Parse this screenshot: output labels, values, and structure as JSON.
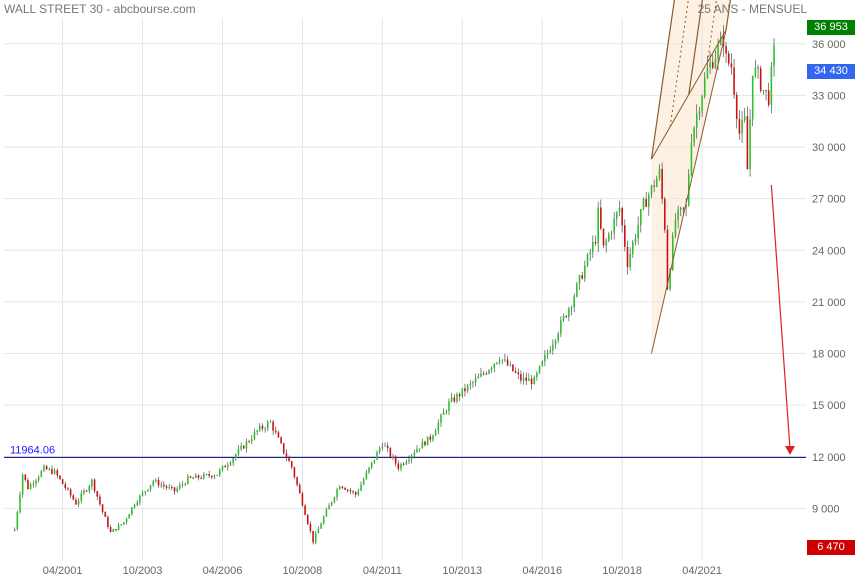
{
  "header": {
    "title": "WALL STREET 30 - abcbourse.com",
    "period": "25 ANS - MENSUEL"
  },
  "colors": {
    "up": "#2fbf2f",
    "down": "#cc1111",
    "grid": "#e6e6e6",
    "support": "#000080",
    "pitchfork": "#8b5a2b",
    "fill": "#fdf1e4",
    "arrow": "#e02020",
    "tag_high": "#008000",
    "tag_last": "#3366ee",
    "tag_low": "#cc0000"
  },
  "chart_data": {
    "type": "candlestick",
    "ylim": [
      6000,
      37500
    ],
    "y_ticks": [
      9000,
      12000,
      15000,
      18000,
      21000,
      24000,
      27000,
      30000,
      33000,
      36000
    ],
    "y_tick_labels": [
      "9 000",
      "12 000",
      "15 000",
      "18 000",
      "21 000",
      "24 000",
      "27 000",
      "30 000",
      "33 000",
      "36 000"
    ],
    "x_ticks": [
      "04/2001",
      "10/2003",
      "04/2006",
      "10/2008",
      "04/2011",
      "10/2013",
      "04/2016",
      "10/2018",
      "04/2021"
    ],
    "price_anchors": [
      [
        "1999-10",
        7800
      ],
      [
        "2000-01",
        11000
      ],
      [
        "2000-03",
        10200
      ],
      [
        "2000-09",
        11300
      ],
      [
        "2001-01",
        11100
      ],
      [
        "2001-09",
        9300
      ],
      [
        "2002-03",
        10600
      ],
      [
        "2002-07",
        8800
      ],
      [
        "2002-10",
        7600
      ],
      [
        "2003-03",
        8200
      ],
      [
        "2003-07",
        9300
      ],
      [
        "2004-02",
        10600
      ],
      [
        "2004-10",
        10000
      ],
      [
        "2005-03",
        10700
      ],
      [
        "2006-02",
        11000
      ],
      [
        "2006-10",
        12300
      ],
      [
        "2007-05",
        13500
      ],
      [
        "2007-10",
        14000
      ],
      [
        "2008-03",
        12300
      ],
      [
        "2008-06",
        11400
      ],
      [
        "2008-10",
        9300
      ],
      [
        "2009-02",
        7100
      ],
      [
        "2009-06",
        8500
      ],
      [
        "2009-12",
        10400
      ],
      [
        "2010-06",
        9800
      ],
      [
        "2011-04",
        12800
      ],
      [
        "2011-10",
        11400
      ],
      [
        "2012-05",
        12500
      ],
      [
        "2012-10",
        13100
      ],
      [
        "2013-05",
        15100
      ],
      [
        "2014-05",
        16700
      ],
      [
        "2014-12",
        17800
      ],
      [
        "2015-08",
        16500
      ],
      [
        "2016-01",
        16400
      ],
      [
        "2016-07",
        18400
      ],
      [
        "2017-03",
        21000
      ],
      [
        "2017-12",
        24700
      ],
      [
        "2018-01",
        26150
      ],
      [
        "2018-03",
        24100
      ],
      [
        "2018-09",
        26450
      ],
      [
        "2018-12",
        23300
      ],
      [
        "2019-06",
        26600
      ],
      [
        "2019-12",
        28500
      ],
      [
        "2020-02",
        25400
      ],
      [
        "2020-03",
        21900
      ],
      [
        "2020-06",
        25800
      ],
      [
        "2020-10",
        26500
      ],
      [
        "2020-12",
        30600
      ],
      [
        "2021-06",
        34500
      ],
      [
        "2021-12",
        36300
      ],
      [
        "2022-01",
        35100
      ],
      [
        "2022-03",
        34700
      ],
      [
        "2022-06",
        30800
      ],
      [
        "2022-08",
        31500
      ],
      [
        "2022-09",
        28700
      ],
      [
        "2022-11",
        34600
      ],
      [
        "2023-01",
        34100
      ],
      [
        "2023-03",
        33300
      ],
      [
        "2023-05",
        32900
      ],
      [
        "2023-07",
        35500
      ]
    ],
    "support_line": {
      "value": 11964.06,
      "label": "11964.06"
    },
    "pitchfork": {
      "pivot": [
        "2019-09",
        18000
      ],
      "a": [
        "2019-09",
        29300
      ],
      "b": [
        "2022-01",
        36800
      ],
      "end": "2024-07"
    },
    "arrow": {
      "from": [
        "2023-06",
        27800
      ],
      "to": [
        "2024-01",
        12100
      ]
    },
    "price_tags": [
      {
        "value": 36953,
        "label": "36 953",
        "kind": "high"
      },
      {
        "value": 34430,
        "label": "34 430",
        "kind": "last"
      },
      {
        "value": 6470,
        "label": "6 470",
        "kind": "low"
      }
    ]
  }
}
